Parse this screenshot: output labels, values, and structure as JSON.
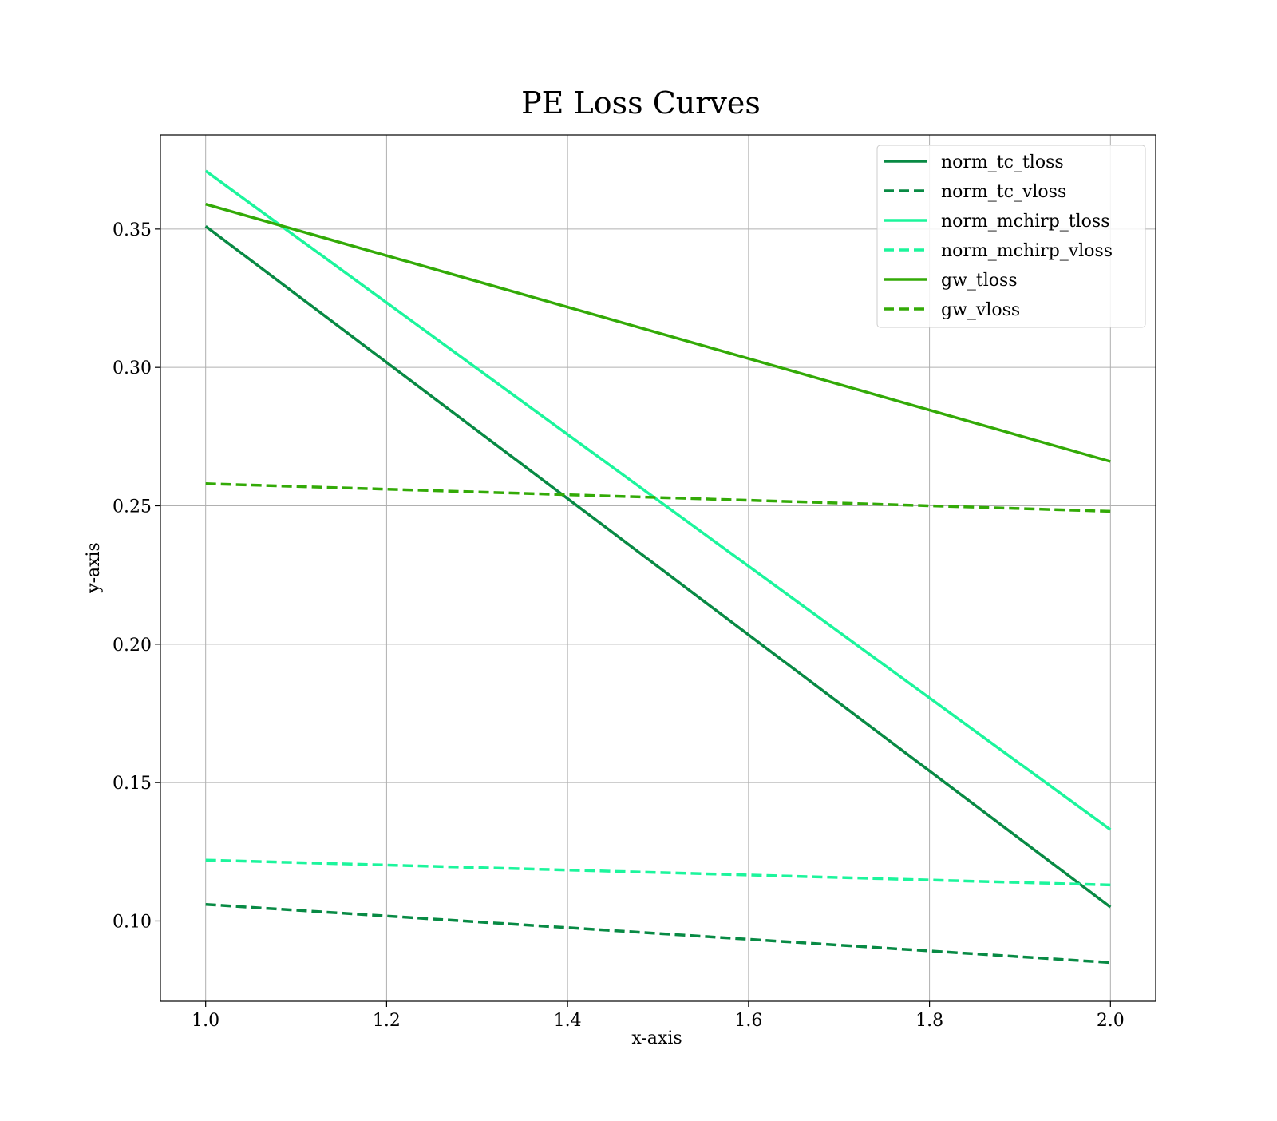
{
  "chart_data": {
    "type": "line",
    "title": "PE Loss Curves",
    "xlabel": "x-axis",
    "ylabel": "y-axis",
    "xlim": [
      0.95,
      2.05
    ],
    "ylim": [
      0.071,
      0.384
    ],
    "xticks": [
      1.0,
      1.2,
      1.4,
      1.6,
      1.8,
      2.0
    ],
    "xtick_labels": [
      "1.0",
      "1.2",
      "1.4",
      "1.6",
      "1.8",
      "2.0"
    ],
    "yticks": [
      0.1,
      0.15,
      0.2,
      0.25,
      0.3,
      0.35
    ],
    "ytick_labels": [
      "0.10",
      "0.15",
      "0.20",
      "0.25",
      "0.30",
      "0.35"
    ],
    "grid": true,
    "legend_position": "top-right",
    "x": [
      1.0,
      2.0
    ],
    "series": [
      {
        "name": "norm_tc_tloss",
        "values": [
          0.351,
          0.105
        ],
        "color": "#088a44",
        "style": "solid"
      },
      {
        "name": "norm_tc_vloss",
        "values": [
          0.106,
          0.085
        ],
        "color": "#088a44",
        "style": "dashed"
      },
      {
        "name": "norm_mchirp_tloss",
        "values": [
          0.371,
          0.133
        ],
        "color": "#1cf59c",
        "style": "solid"
      },
      {
        "name": "norm_mchirp_vloss",
        "values": [
          0.122,
          0.113
        ],
        "color": "#1cf59c",
        "style": "dashed"
      },
      {
        "name": "gw_tloss",
        "values": [
          0.359,
          0.266
        ],
        "color": "#33aa07",
        "style": "solid"
      },
      {
        "name": "gw_vloss",
        "values": [
          0.258,
          0.248
        ],
        "color": "#33aa07",
        "style": "dashed"
      }
    ]
  }
}
